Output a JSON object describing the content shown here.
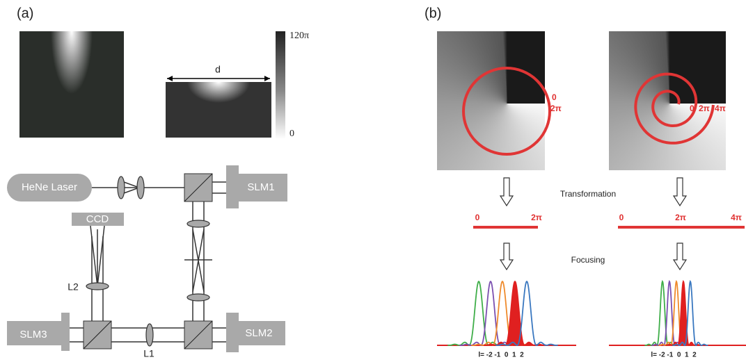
{
  "panel_a": {
    "label": "(a)",
    "d_label": "d",
    "colorbar_max": "120π",
    "colorbar_min": "0",
    "components": {
      "laser": "HeNe Laser",
      "slm1": "SLM1",
      "ccd": "CCD",
      "l2": "L2",
      "slm3": "SLM3",
      "l1": "L1",
      "slm2": "SLM2"
    }
  },
  "panel_b": {
    "label": "(b)",
    "left_phase": [
      "0",
      "2π"
    ],
    "right_phase": [
      "0",
      "2π",
      "4π"
    ],
    "transformation": "Transformation",
    "left_line": [
      "0",
      "2π"
    ],
    "right_line": [
      "0",
      "2π",
      "4π"
    ],
    "focusing": "Focusing",
    "left_modes": "l= -2 -1  0  1  2",
    "right_modes": "l= -2 -1  0  1  2"
  }
}
